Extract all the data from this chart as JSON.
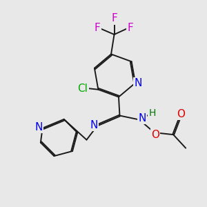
{
  "background_color": "#e8e8e8",
  "bond_color": "#1a1a1a",
  "nitrogen_color": "#0000ee",
  "oxygen_color": "#dd0000",
  "fluorine_color": "#cc00cc",
  "chlorine_color": "#00aa00",
  "hydrogen_color": "#007700",
  "figsize": [
    3.0,
    3.0
  ],
  "dpi": 100,
  "xlim": [
    0,
    10
  ],
  "ylim": [
    0,
    10
  ]
}
